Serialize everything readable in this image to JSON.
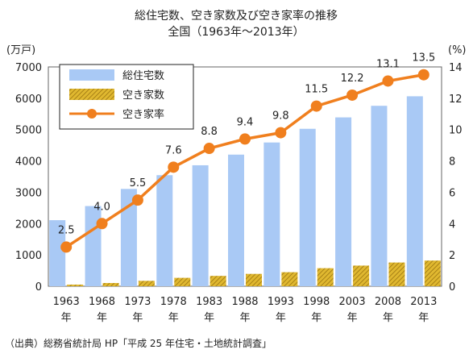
{
  "chart_data": {
    "type": "bar",
    "title": "総住宅数、空き家数及び空き家率の推移",
    "subtitle": "全国（1963年～2013年）",
    "left_axis_unit": "(万戸)",
    "right_axis_unit": "(%)",
    "x_suffix": "年",
    "categories": [
      "1963",
      "1968",
      "1973",
      "1978",
      "1983",
      "1988",
      "1993",
      "1998",
      "2003",
      "2008",
      "2013"
    ],
    "left_ticks": [
      "0",
      "1000",
      "2000",
      "3000",
      "4000",
      "5000",
      "6000",
      "7000"
    ],
    "right_ticks": [
      "0",
      "2",
      "4",
      "6",
      "8",
      "10",
      "12",
      "14"
    ],
    "ylim_left": [
      0,
      7000
    ],
    "ylim_right": [
      0,
      14
    ],
    "series": [
      {
        "name": "総住宅数",
        "type": "bar",
        "axis": "left",
        "color": "#a9c9f5",
        "values": [
          2109,
          2559,
          3106,
          3545,
          3861,
          4201,
          4588,
          5025,
          5389,
          5759,
          6063
        ]
      },
      {
        "name": "空き家数",
        "type": "bar",
        "axis": "left",
        "color": "#c9a227",
        "values": [
          52,
          103,
          172,
          268,
          330,
          394,
          448,
          576,
          659,
          757,
          820
        ]
      },
      {
        "name": "空き家率",
        "type": "line",
        "axis": "right",
        "color": "#f07f1e",
        "values": [
          2.5,
          4.0,
          5.5,
          7.6,
          8.8,
          9.4,
          9.8,
          11.5,
          12.2,
          13.1,
          13.5
        ],
        "labels": [
          "2.5",
          "4.0",
          "5.5",
          "7.6",
          "8.8",
          "9.4",
          "9.8",
          "11.5",
          "12.2",
          "13.1",
          "13.5"
        ]
      }
    ],
    "legend": "top-left",
    "grid": false
  },
  "source": "（出典）総務省統計局 HP「平成 25 年住宅・土地統計調査」"
}
